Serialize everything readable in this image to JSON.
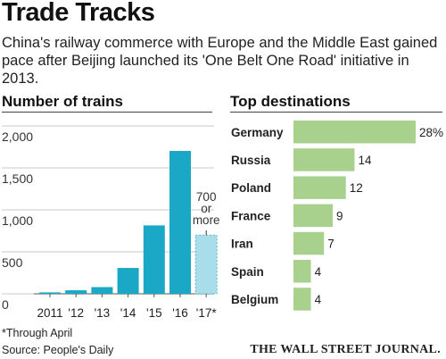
{
  "title": "Trade Tracks",
  "subtitle": "China's railway commerce with Europe and the Middle East gained pace after Beijing launched its 'One Belt One Road' initiative in 2013.",
  "chart_data": [
    {
      "type": "bar",
      "title": "Number of trains",
      "categories": [
        "2011",
        "'12",
        "'13",
        "'14",
        "'15",
        "'16",
        "'17*"
      ],
      "values": [
        17,
        42,
        80,
        308,
        815,
        1702,
        700
      ],
      "annotation": {
        "category": "'17*",
        "label_line1": "700",
        "label_line2": "or",
        "label_line3": "more"
      },
      "yticks": [
        "2,000",
        "1,500",
        "1,000",
        "500",
        "0"
      ],
      "ytick_values": [
        2000,
        1500,
        1000,
        500,
        0
      ],
      "ylim": [
        0,
        2000
      ],
      "grid": true,
      "colors": {
        "bar": "#1ba8c6",
        "projected": "#a9ddea",
        "projected_border": "#5ab6cc"
      }
    },
    {
      "type": "bar",
      "orientation": "horizontal",
      "title": "Top destinations",
      "categories": [
        "Germany",
        "Russia",
        "Poland",
        "France",
        "Iran",
        "Spain",
        "Belgium"
      ],
      "values": [
        28,
        14,
        12,
        9,
        7,
        4,
        4
      ],
      "value_labels": [
        "28%",
        "14",
        "12",
        "9",
        "7",
        "4",
        "4"
      ],
      "unit": "%",
      "xlim": [
        0,
        28
      ],
      "colors": {
        "bar": "#a8d18d"
      }
    }
  ],
  "footnotes": {
    "through_april": "*Through April",
    "source": "Source: People's Daily"
  },
  "brand": "THE WALL STREET JOURNAL."
}
